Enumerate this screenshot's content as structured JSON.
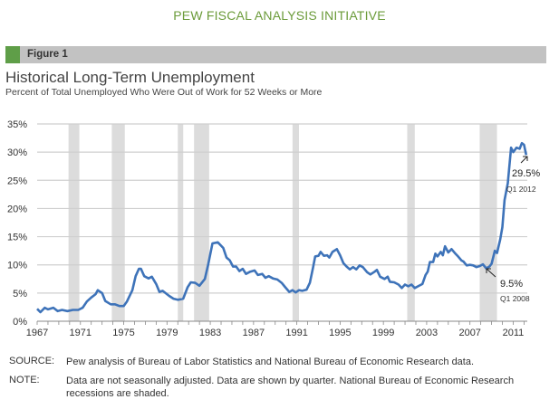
{
  "header": {
    "org": "PEW FISCAL ANALYSIS INITIATIVE",
    "figure_label": "Figure 1"
  },
  "chart_data": {
    "type": "line",
    "title": "Historical Long-Term Unemployment",
    "subtitle": "Percent of Total Unemployed Who Were Out of Work for 52 Weeks or More",
    "xlabel": "",
    "ylabel": "",
    "xlim": [
      1967,
      2012.3
    ],
    "ylim": [
      0,
      35
    ],
    "y_ticks": [
      "0%",
      "5%",
      "10%",
      "15%",
      "20%",
      "25%",
      "30%",
      "35%"
    ],
    "x_ticks": [
      "1967",
      "1971",
      "1975",
      "1979",
      "1983",
      "1987",
      "1991",
      "1995",
      "1999",
      "2003",
      "2007",
      "2011"
    ],
    "grid": true,
    "series": [
      {
        "name": "Long-term unemployed share",
        "color": "#3e73b9",
        "x": [
          1967.0,
          1967.3,
          1967.7,
          1968.0,
          1968.5,
          1968.9,
          1969.3,
          1969.8,
          1970.3,
          1970.8,
          1971.2,
          1971.6,
          1972.0,
          1972.4,
          1972.6,
          1973.0,
          1973.3,
          1973.8,
          1974.2,
          1974.6,
          1975.0,
          1975.3,
          1975.8,
          1976.1,
          1976.4,
          1976.6,
          1976.9,
          1977.3,
          1977.6,
          1978.0,
          1978.3,
          1978.6,
          1979.2,
          1979.6,
          1980.0,
          1980.5,
          1980.9,
          1981.2,
          1981.6,
          1982.0,
          1982.5,
          1982.8,
          1983.2,
          1983.7,
          1984.2,
          1984.5,
          1984.8,
          1985.1,
          1985.4,
          1985.7,
          1986.0,
          1986.3,
          1986.7,
          1987.1,
          1987.4,
          1987.8,
          1988.1,
          1988.4,
          1988.8,
          1989.2,
          1989.6,
          1989.9,
          1990.3,
          1990.6,
          1990.9,
          1991.2,
          1991.5,
          1991.9,
          1992.2,
          1992.5,
          1992.7,
          1993.0,
          1993.2,
          1993.5,
          1993.8,
          1994.0,
          1994.3,
          1994.7,
          1995.0,
          1995.3,
          1995.6,
          1995.9,
          1996.2,
          1996.5,
          1996.8,
          1997.1,
          1997.5,
          1997.8,
          1998.2,
          1998.4,
          1998.7,
          1999.1,
          1999.4,
          1999.6,
          2000.0,
          2000.4,
          2000.7,
          2001.0,
          2001.3,
          2001.6,
          2001.9,
          2002.2,
          2002.6,
          2002.9,
          2003.1,
          2003.3,
          2003.6,
          2003.8,
          2004.0,
          2004.3,
          2004.5,
          2004.7,
          2005.0,
          2005.3,
          2005.6,
          2005.9,
          2006.2,
          2006.4,
          2006.7,
          2007.0,
          2007.3,
          2007.6,
          2007.9,
          2008.2,
          2008.5,
          2008.8,
          2009.0,
          2009.3,
          2009.5,
          2009.8,
          2010.0,
          2010.2,
          2010.5,
          2010.8,
          2011.0,
          2011.3,
          2011.6,
          2011.8,
          2012.0,
          2012.2
        ],
        "y": [
          2.2,
          1.6,
          2.4,
          2.1,
          2.4,
          1.8,
          2.0,
          1.8,
          2.0,
          2.0,
          2.4,
          3.5,
          4.2,
          4.8,
          5.5,
          5.0,
          3.6,
          3.0,
          3.0,
          2.7,
          2.7,
          3.5,
          5.5,
          8.0,
          9.3,
          9.3,
          8.0,
          7.6,
          7.9,
          6.6,
          5.2,
          5.4,
          4.5,
          4.0,
          3.8,
          4.0,
          6.0,
          6.9,
          6.8,
          6.3,
          7.5,
          10.0,
          13.8,
          14.0,
          13.0,
          11.3,
          10.8,
          9.7,
          9.7,
          8.9,
          9.3,
          8.4,
          8.8,
          9.0,
          8.2,
          8.4,
          7.7,
          8.0,
          7.6,
          7.4,
          6.8,
          6.1,
          5.2,
          5.5,
          5.1,
          5.5,
          5.4,
          5.6,
          6.8,
          9.5,
          11.5,
          11.6,
          12.3,
          11.6,
          11.7,
          11.3,
          12.3,
          12.8,
          11.7,
          10.3,
          9.7,
          9.2,
          9.6,
          9.2,
          9.9,
          9.6,
          8.7,
          8.3,
          8.8,
          9.1,
          7.9,
          7.5,
          7.9,
          7.0,
          6.9,
          6.5,
          5.9,
          6.5,
          6.2,
          6.5,
          5.9,
          6.2,
          6.6,
          8.2,
          8.8,
          10.5,
          10.5,
          12.0,
          11.5,
          12.3,
          11.7,
          13.3,
          12.2,
          12.8,
          12.1,
          11.5,
          10.8,
          10.6,
          9.9,
          10.0,
          9.9,
          9.6,
          9.8,
          10.1,
          9.4,
          9.7,
          10.2,
          12.5,
          12.1,
          14.5,
          16.7,
          21.5,
          24.5,
          30.8,
          30.0,
          30.8,
          30.6,
          31.6,
          31.3,
          29.5
        ]
      }
    ],
    "recessions": [
      [
        1969.9,
        1970.9
      ],
      [
        1973.9,
        1975.1
      ],
      [
        1980.0,
        1980.5
      ],
      [
        1981.5,
        1982.9
      ],
      [
        1990.6,
        1991.2
      ],
      [
        2001.2,
        2001.9
      ],
      [
        2007.9,
        2009.5
      ]
    ],
    "annotations": [
      {
        "value": "29.5%",
        "period": "Q1 2012"
      },
      {
        "value": "9.5%",
        "period": "Q1 2008"
      }
    ]
  },
  "footer": {
    "source_label": "SOURCE:",
    "source_text": "Pew analysis of Bureau of Labor Statistics  and National Bureau of Economic Research data.",
    "note_label": "NOTE:",
    "note_text": "Data are not seasonally adjusted. Data are shown by quarter. National Bureau of Economic Research recessions are shaded."
  }
}
